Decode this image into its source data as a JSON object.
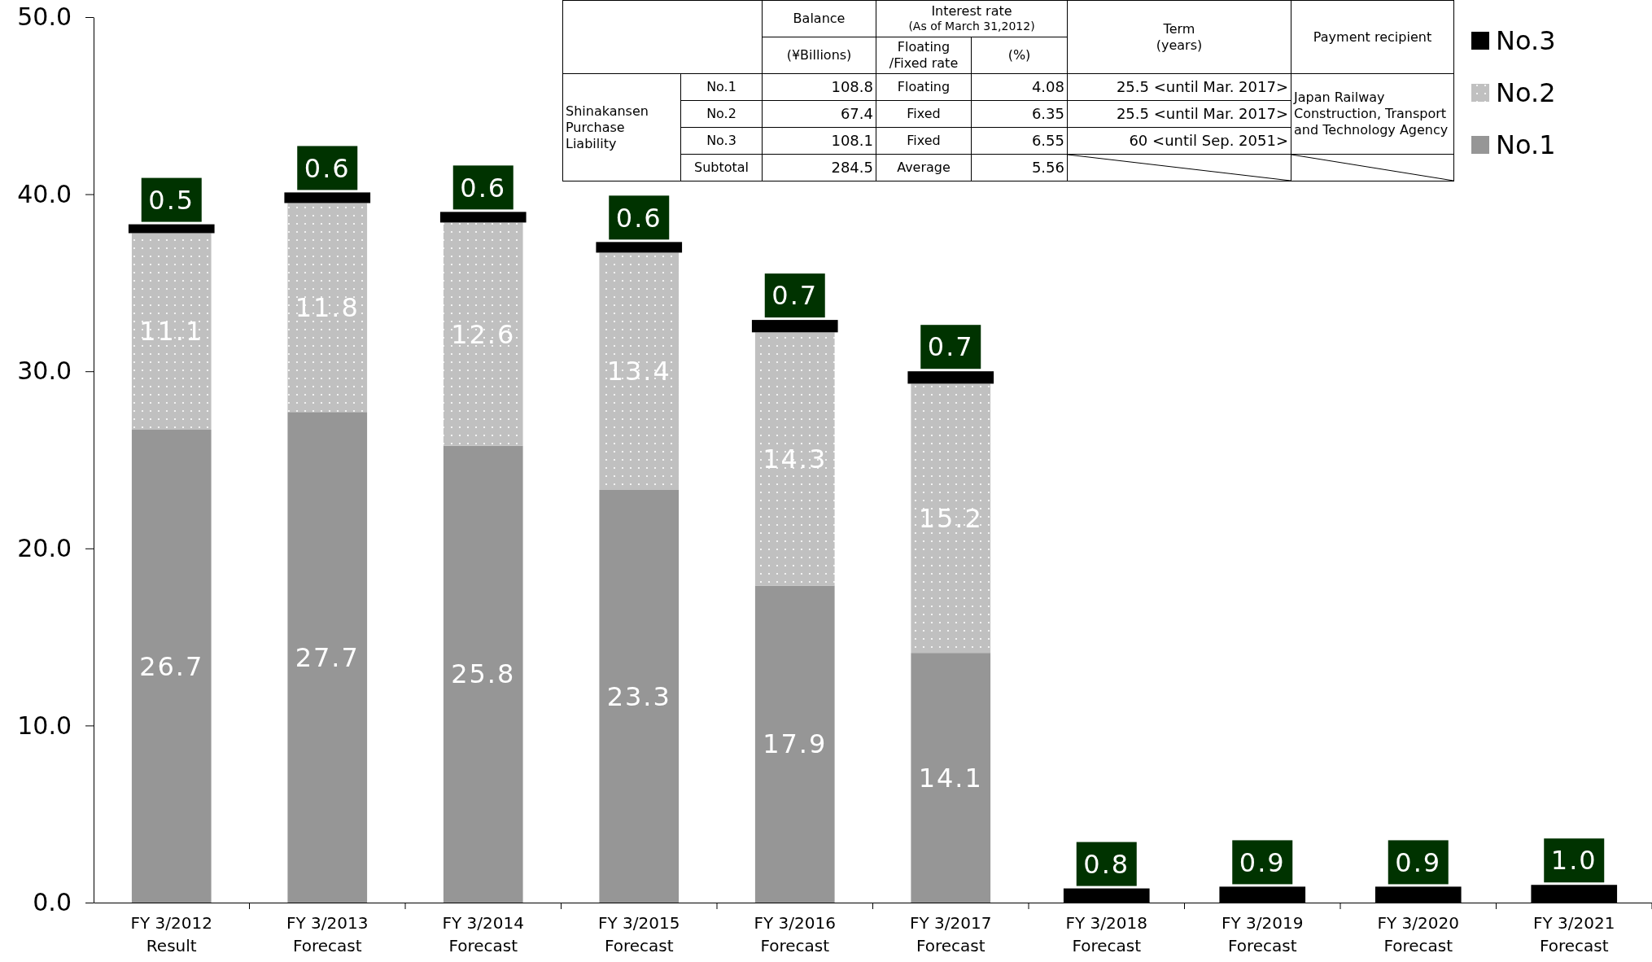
{
  "chart_data": {
    "type": "bar",
    "stacked": true,
    "data_labels": true,
    "legend": "top right",
    "grid": false,
    "categories": [
      "FY 3/2012 Result",
      "FY 3/2013 Forecast",
      "FY 3/2014 Forecast",
      "FY 3/2015 Forecast",
      "FY 3/2016 Forecast",
      "FY 3/2017 Forecast",
      "FY 3/2018 Forecast",
      "FY 3/2019 Forecast",
      "FY 3/2020 Forecast",
      "FY 3/2021 Forecast"
    ],
    "series": [
      {
        "name": "No.1",
        "color": "#969696",
        "values": [
          26.7,
          27.7,
          25.8,
          23.3,
          17.9,
          14.1,
          null,
          null,
          null,
          null
        ]
      },
      {
        "name": "No.2",
        "color": "#c0c0c0",
        "values": [
          11.1,
          11.8,
          12.6,
          13.4,
          14.3,
          15.2,
          null,
          null,
          null,
          null
        ]
      },
      {
        "name": "No.3",
        "color": "#000000",
        "values": [
          0.5,
          0.6,
          0.6,
          0.6,
          0.7,
          0.7,
          0.8,
          0.9,
          0.9,
          1.0
        ],
        "value_labels": [
          "0.5",
          "0.6",
          "0.6",
          "0.6",
          "0.7",
          "0.7",
          "0.8",
          "0.9",
          "0.9",
          "1.0"
        ]
      }
    ],
    "ylim": [
      0,
      50
    ],
    "yticks": [
      {
        "value": 0,
        "label": "0.0"
      },
      {
        "value": 10,
        "label": "10.0"
      },
      {
        "value": 20,
        "label": "20.0"
      },
      {
        "value": 30,
        "label": "30.0"
      },
      {
        "value": 40,
        "label": "40.0"
      },
      {
        "value": 50,
        "label": "50.0"
      }
    ],
    "annotations": [
      "Balance",
      "Interest rate",
      "(As of March 31,2012)",
      "Term",
      "(years)",
      "Payment recipient",
      "(¥Billions)",
      "Floating",
      "/Fixed rate",
      "(%)",
      "Shinakansen Purchase Liability",
      "No.1",
      "108.8",
      "Floating",
      "4.08",
      "25.5 <until Mar. 2017>",
      "Japan Railway Construction, Transport and Technology Agency",
      "No.2",
      "67.4",
      "Fixed",
      "6.35",
      "25.5 <until Mar. 2017>",
      "No.3",
      "108.1",
      "Fixed",
      "6.55",
      "60 <until Sep. 2051>",
      "Subtotal",
      "284.5",
      "Average",
      "5.56"
    ]
  }
}
